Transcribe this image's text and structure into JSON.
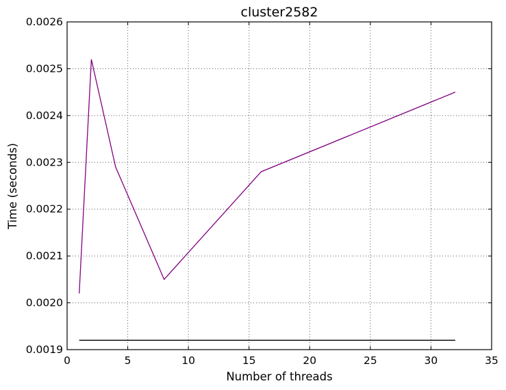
{
  "chart_data": {
    "type": "line",
    "title": "cluster2582",
    "xlabel": "Number of threads",
    "ylabel": "Time (seconds)",
    "xlim": [
      0,
      35
    ],
    "ylim": [
      0.0019,
      0.0026
    ],
    "xticks": [
      0,
      5,
      10,
      15,
      20,
      25,
      30,
      35
    ],
    "xtick_labels": [
      "0",
      "5",
      "10",
      "15",
      "20",
      "25",
      "30",
      "35"
    ],
    "yticks": [
      0.0019,
      0.002,
      0.0021,
      0.0022,
      0.0023,
      0.0024,
      0.0025,
      0.0026
    ],
    "ytick_labels": [
      "0.0019",
      "0.0020",
      "0.0021",
      "0.0022",
      "0.0023",
      "0.0024",
      "0.0025",
      "0.0026"
    ],
    "grid": true,
    "series": [
      {
        "color": "#800080",
        "x": [
          1,
          2,
          4,
          8,
          16,
          32
        ],
        "y": [
          0.00202,
          0.00252,
          0.00229,
          0.00205,
          0.00228,
          0.00245
        ]
      },
      {
        "color": "#000000",
        "x": [
          1,
          32
        ],
        "y": [
          0.00192,
          0.00192
        ]
      }
    ]
  }
}
